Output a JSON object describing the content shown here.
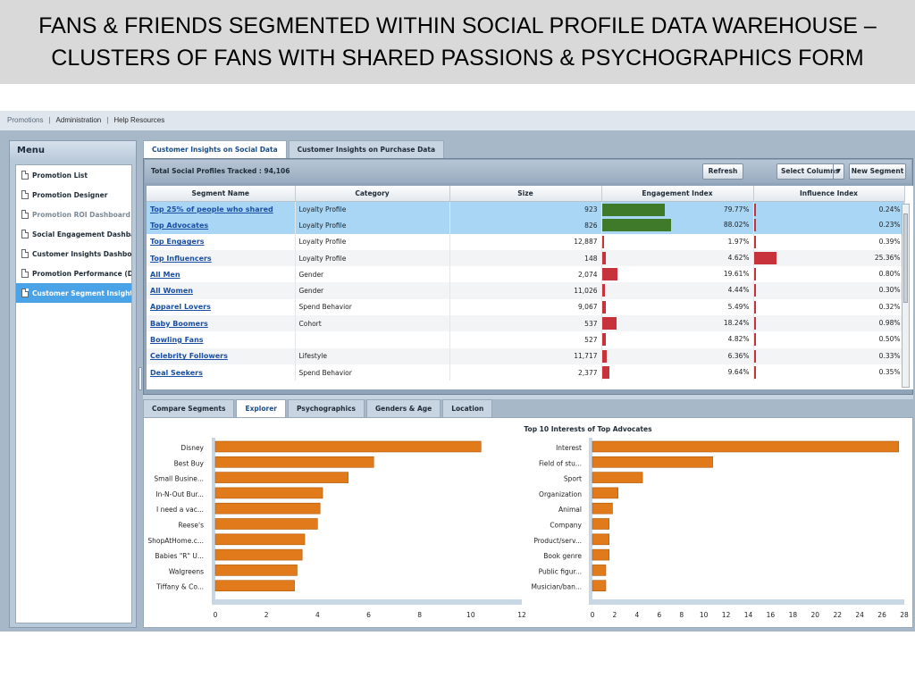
{
  "slide": {
    "title_line1": "FANS & FRIENDS SEGMENTED WITHIN SOCIAL PROFILE DATA WAREHOUSE –",
    "title_line2": "CLUSTERS OF FANS WITH SHARED PASSIONS & PSYCHOGRAPHICS FORM"
  },
  "topnav": [
    "Promotions",
    "Administration",
    "Help Resources"
  ],
  "menu": {
    "title": "Menu",
    "items": [
      {
        "label": "Promotion List",
        "state": "normal"
      },
      {
        "label": "Promotion Designer",
        "state": "normal"
      },
      {
        "label": "Promotion ROI Dashboard",
        "state": "muted"
      },
      {
        "label": "Social Engagement Dashbard",
        "state": "normal"
      },
      {
        "label": "Customer Insights Dashboar",
        "state": "normal"
      },
      {
        "label": "Promotion Performance (De",
        "state": "normal"
      },
      {
        "label": "Customer Segment Insights",
        "state": "active"
      }
    ]
  },
  "top_tabs": [
    "Customer Insights on Social Data",
    "Customer Insights on Purchase Data"
  ],
  "toolbar": {
    "total_label": "Total Social Profiles Tracked : 94,106",
    "refresh": "Refresh",
    "select_columns": "Select Columns",
    "new_segment": "New Segment"
  },
  "grid": {
    "columns": [
      "Segment Name",
      "Category",
      "Size",
      "Engagement Index",
      "Influence Index"
    ],
    "rows": [
      {
        "name": "Top 25% of people who shared",
        "category": "Loyalty Profile",
        "size": "923",
        "engagement": "79.77%",
        "eng_pct": 0.7977,
        "influence": "0.24%",
        "inf_pct": 0.0024,
        "selected": true
      },
      {
        "name": "Top Advocates",
        "category": "Loyalty Profile",
        "size": "826",
        "engagement": "88.02%",
        "eng_pct": 0.8802,
        "influence": "0.23%",
        "inf_pct": 0.0023,
        "selected": true
      },
      {
        "name": "Top Engagers",
        "category": "Loyalty Profile",
        "size": "12,887",
        "engagement": "1.97%",
        "eng_pct": 0.0197,
        "influence": "0.39%",
        "inf_pct": 0.0039
      },
      {
        "name": "Top Influencers",
        "category": "Loyalty Profile",
        "size": "148",
        "engagement": "4.62%",
        "eng_pct": 0.0462,
        "influence": "25.36%",
        "inf_pct": 0.2536
      },
      {
        "name": "All Men",
        "category": "Gender",
        "size": "2,074",
        "engagement": "19.61%",
        "eng_pct": 0.1961,
        "influence": "0.80%",
        "inf_pct": 0.008
      },
      {
        "name": "All Women",
        "category": "Gender",
        "size": "11,026",
        "engagement": "4.44%",
        "eng_pct": 0.0444,
        "influence": "0.30%",
        "inf_pct": 0.003
      },
      {
        "name": "Apparel Lovers",
        "category": "Spend Behavior",
        "size": "9,067",
        "engagement": "5.49%",
        "eng_pct": 0.0549,
        "influence": "0.32%",
        "inf_pct": 0.0032
      },
      {
        "name": "Baby Boomers",
        "category": "Cohort",
        "size": "537",
        "engagement": "18.24%",
        "eng_pct": 0.1824,
        "influence": "0.98%",
        "inf_pct": 0.0098
      },
      {
        "name": "Bowling Fans",
        "category": "",
        "size": "527",
        "engagement": "4.82%",
        "eng_pct": 0.0482,
        "influence": "0.50%",
        "inf_pct": 0.005
      },
      {
        "name": "Celebrity Followers",
        "category": "Lifestyle",
        "size": "11,717",
        "engagement": "6.36%",
        "eng_pct": 0.0636,
        "influence": "0.33%",
        "inf_pct": 0.0033
      },
      {
        "name": "Deal Seekers",
        "category": "Spend Behavior",
        "size": "2,377",
        "engagement": "9.64%",
        "eng_pct": 0.0964,
        "influence": "0.35%",
        "inf_pct": 0.0035
      }
    ]
  },
  "bottom_tabs": [
    {
      "label": "Compare Segments",
      "active": false
    },
    {
      "label": "Explorer",
      "active": true
    },
    {
      "label": "Psychographics",
      "active": false
    },
    {
      "label": "Genders & Age",
      "active": false
    },
    {
      "label": "Location",
      "active": false
    }
  ],
  "colors": {
    "bar_orange": "#e07a1a",
    "eng_green": "#3f7a2a",
    "low_red": "#c8323a",
    "selected_row": "#a9d6f5",
    "active_menu": "#4aa3e6"
  },
  "chart_data": [
    {
      "type": "bar",
      "orientation": "horizontal",
      "title": "",
      "categories": [
        "Disney",
        "Best Buy",
        "Small Busine...",
        "In-N-Out Bur...",
        "I need a vac...",
        "Reese's",
        "ShopAtHome.c...",
        "Babies \"R\" U...",
        "Walgreens",
        "Tiffany & Co..."
      ],
      "values": [
        10.4,
        6.2,
        5.2,
        4.2,
        4.1,
        4.0,
        3.5,
        3.4,
        3.2,
        3.1
      ],
      "xlim": [
        0,
        12
      ],
      "xticks": [
        0,
        2,
        4,
        6,
        8,
        10,
        12
      ]
    },
    {
      "type": "bar",
      "orientation": "horizontal",
      "title": "Top 10 Interests of Top Advocates",
      "categories": [
        "Interest",
        "Field of stu...",
        "Sport",
        "Organization",
        "Animal",
        "Company",
        "Product/serv...",
        "Book genre",
        "Public figur...",
        "Musician/ban..."
      ],
      "values": [
        27.5,
        10.8,
        4.5,
        2.3,
        1.8,
        1.5,
        1.5,
        1.5,
        1.2,
        1.2
      ],
      "xlim": [
        0,
        28
      ],
      "xticks": [
        0,
        2,
        4,
        6,
        8,
        10,
        12,
        14,
        16,
        18,
        20,
        22,
        24,
        26,
        28
      ]
    }
  ]
}
